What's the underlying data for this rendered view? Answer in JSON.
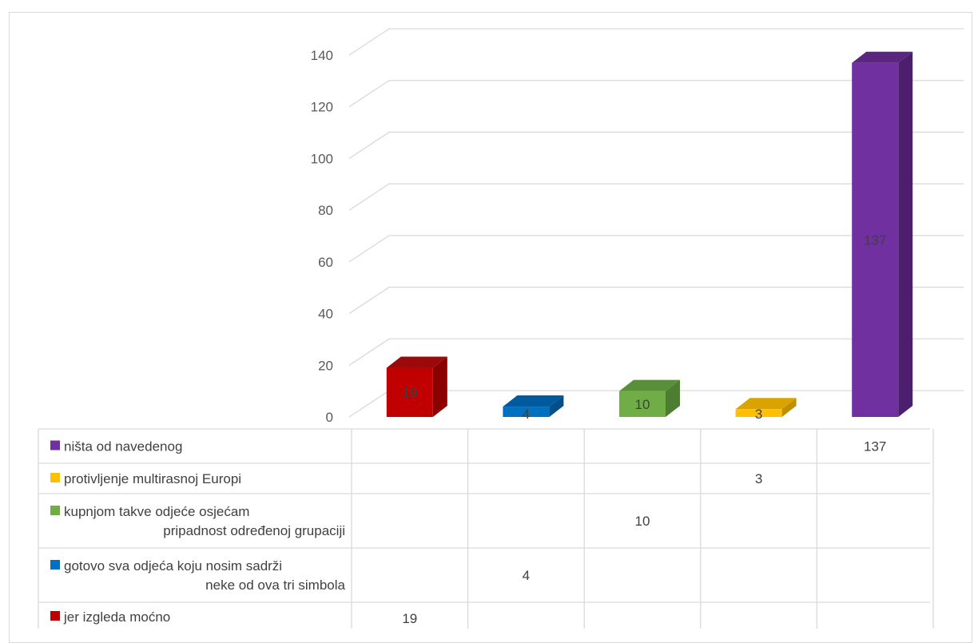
{
  "chart_data": {
    "type": "bar",
    "style": "3d-column-with-data-table",
    "ylim": [
      0,
      140
    ],
    "yticks": [
      "0",
      "20",
      "40",
      "60",
      "80",
      "100",
      "120",
      "140"
    ],
    "grid": true,
    "series": [
      {
        "name": "jer izgleda moćno",
        "name_lines": [
          "jer izgleda moćno"
        ],
        "value": 19,
        "label": "19",
        "color": "#c00000",
        "color_side": "#8b0000",
        "color_top": "#9b0a0a"
      },
      {
        "name": "gotovo sva odjeća koju nosim sadrži neke od ova tri simbola",
        "name_lines": [
          "gotovo sva odjeća koju nosim sadrži",
          "neke od ova tri simbola"
        ],
        "value": 4,
        "label": "4",
        "color": "#0070c0",
        "color_side": "#004f8a",
        "color_top": "#005a9e"
      },
      {
        "name": "kupnjom takve odjeće osjećam pripadnost određenoj grupaciji",
        "name_lines": [
          "kupnjom takve odjeće osjećam",
          "pripadnost određenoj grupaciji"
        ],
        "value": 10,
        "label": "10",
        "color": "#70ad47",
        "color_side": "#4e7d31",
        "color_top": "#5a8f3a"
      },
      {
        "name": "protivljenje multirasnoj Europi",
        "name_lines": [
          "protivljenje multirasnoj Europi"
        ],
        "value": 3,
        "label": "3",
        "color": "#ffc000",
        "color_side": "#bf8f00",
        "color_top": "#d9a300"
      },
      {
        "name": "ništa od navedenog",
        "name_lines": [
          "ništa od navedenog"
        ],
        "value": 137,
        "label": "137",
        "color": "#7030a0",
        "color_side": "#4b1f6e",
        "color_top": "#5a267f"
      }
    ]
  }
}
